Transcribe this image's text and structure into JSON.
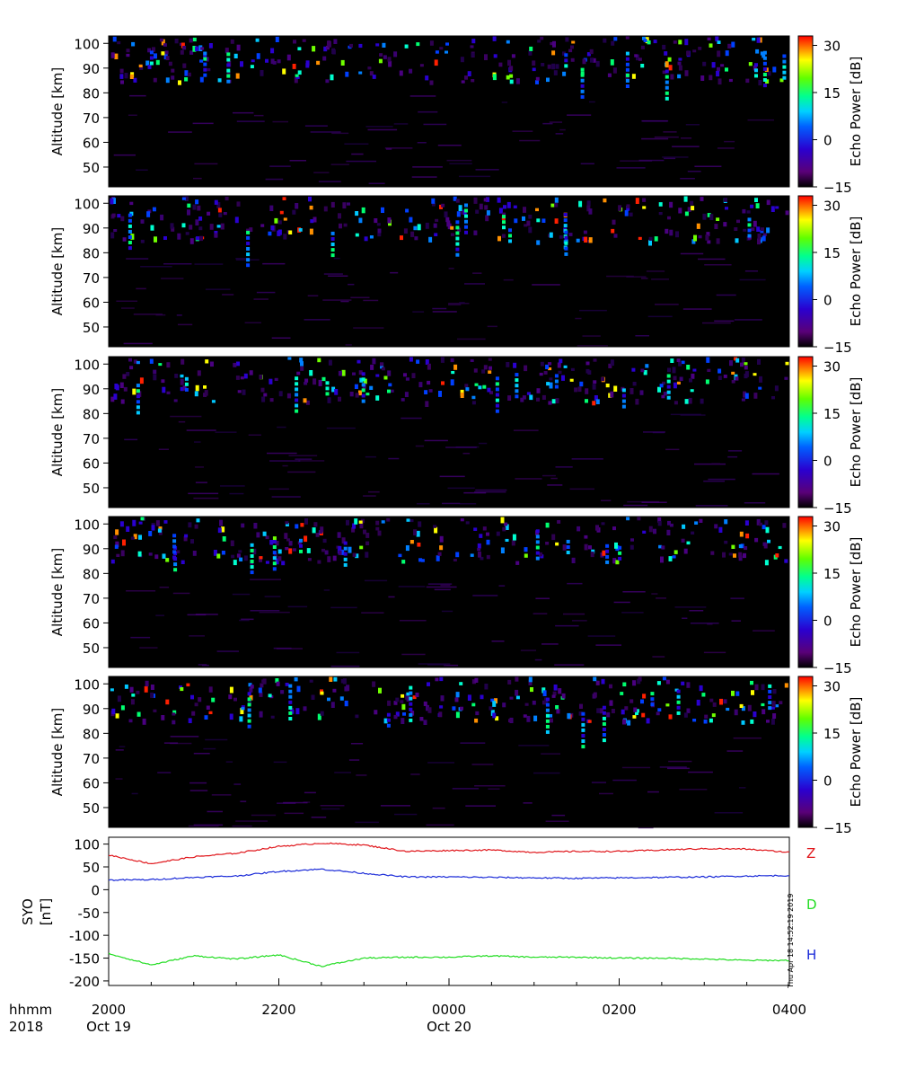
{
  "panels": [
    {
      "name": "panel-1",
      "ylabel": "Altitude [km]",
      "yticks": [
        "100",
        "90",
        "80",
        "70",
        "60",
        "50"
      ],
      "cbar_label": "Echo Power [dB]",
      "cbar_ticks": [
        "30",
        "15",
        "0",
        "−15"
      ]
    },
    {
      "name": "panel-2",
      "ylabel": "Altitude [km]",
      "yticks": [
        "100",
        "90",
        "80",
        "70",
        "60",
        "50"
      ],
      "cbar_label": "Echo Power [dB]",
      "cbar_ticks": [
        "30",
        "15",
        "0",
        "−15"
      ]
    },
    {
      "name": "panel-3",
      "ylabel": "Altitude [km]",
      "yticks": [
        "100",
        "90",
        "80",
        "70",
        "60",
        "50"
      ],
      "cbar_label": "Echo Power [dB]",
      "cbar_ticks": [
        "30",
        "15",
        "0",
        "−15"
      ]
    },
    {
      "name": "panel-4",
      "ylabel": "Altitude [km]",
      "yticks": [
        "100",
        "90",
        "80",
        "70",
        "60",
        "50"
      ],
      "cbar_label": "Echo Power [dB]",
      "cbar_ticks": [
        "30",
        "15",
        "0",
        "−15"
      ]
    },
    {
      "name": "panel-5",
      "ylabel": "Altitude [km]",
      "yticks": [
        "100",
        "90",
        "80",
        "70",
        "60",
        "50"
      ],
      "cbar_label": "Echo Power [dB]",
      "cbar_ticks": [
        "30",
        "15",
        "0",
        "−15"
      ]
    }
  ],
  "magnetometer": {
    "ylabel_line1": "SYO",
    "ylabel_line2": "[nT]",
    "yticks": [
      "100",
      "50",
      "0",
      "-50",
      "-100",
      "-150",
      "-200"
    ],
    "series_labels": [
      {
        "name": "Z",
        "color": "#e0161b"
      },
      {
        "name": "D",
        "color": "#22dd22"
      },
      {
        "name": "H",
        "color": "#1a2ad8"
      }
    ]
  },
  "xaxis": {
    "row1_label": "hhmm",
    "row2_label": "2018",
    "ticks": [
      {
        "time": "2000",
        "date": "Oct 19"
      },
      {
        "time": "2200",
        "date": ""
      },
      {
        "time": "0000",
        "date": "Oct 20"
      },
      {
        "time": "0200",
        "date": ""
      },
      {
        "time": "0400",
        "date": ""
      }
    ]
  },
  "timestamp": "Thu Apr 18 14:52:19 2019",
  "chart_data": [
    {
      "type": "heatmap",
      "title": "",
      "xlabel": "",
      "ylabel": "Altitude [km]",
      "xlim": [
        "2018-10-19 20:00",
        "2018-10-20 04:00"
      ],
      "ylim": [
        42,
        103
      ],
      "colorbar": {
        "label": "Echo Power [dB]",
        "range": [
          -15,
          33
        ],
        "ticks": [
          30,
          15,
          0,
          -15
        ],
        "colormap": "rainbow"
      },
      "panels": 5,
      "echo_layer_km": [
        85,
        103
      ]
    },
    {
      "type": "line",
      "title": "",
      "ylabel": "SYO [nT]",
      "xlim": [
        "2018-10-19 20:00",
        "2018-10-20 04:00"
      ],
      "ylim": [
        -210,
        115
      ],
      "x": [
        "2000",
        "2030",
        "2100",
        "2130",
        "2200",
        "2230",
        "2300",
        "2330",
        "0000",
        "0030",
        "0100",
        "0130",
        "0200",
        "0230",
        "0300",
        "0330",
        "0400"
      ],
      "series": [
        {
          "name": "Z",
          "color": "#e0161b",
          "values": [
            76,
            57,
            72,
            80,
            95,
            102,
            98,
            84,
            86,
            87,
            82,
            84,
            84,
            87,
            90,
            89,
            82
          ]
        },
        {
          "name": "D",
          "color": "#22dd22",
          "values": [
            -140,
            -165,
            -145,
            -152,
            -143,
            -168,
            -150,
            -148,
            -148,
            -145,
            -148,
            -148,
            -150,
            -150,
            -152,
            -155,
            -155
          ]
        },
        {
          "name": "H",
          "color": "#1a2ad8",
          "values": [
            21,
            22,
            27,
            30,
            40,
            45,
            36,
            28,
            28,
            27,
            26,
            25,
            26,
            27,
            28,
            30,
            31
          ]
        }
      ]
    }
  ]
}
